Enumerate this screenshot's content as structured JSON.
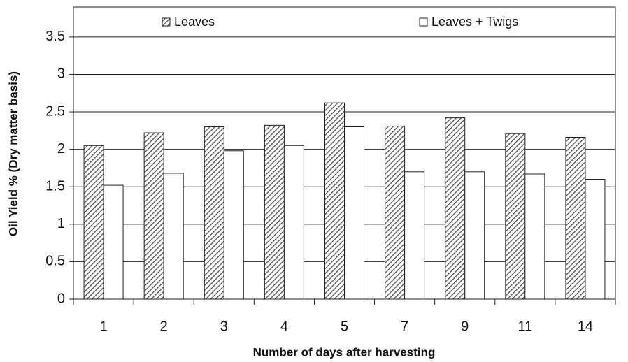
{
  "chart_data": {
    "type": "bar",
    "x_label": "Number of days after harvesting",
    "y_label": "Oil Yield % (Dry matter basis)",
    "categories": [
      "1",
      "2",
      "3",
      "4",
      "5",
      "7",
      "9",
      "11",
      "14"
    ],
    "series": [
      {
        "name": "Leaves",
        "color": "#444444",
        "fill": "hatch",
        "values": [
          2.05,
          2.22,
          2.3,
          2.32,
          2.62,
          2.31,
          2.42,
          2.21,
          2.16
        ]
      },
      {
        "name": "Leaves + Twigs",
        "color": "#ffffff",
        "fill": "solid",
        "values": [
          1.52,
          1.68,
          1.98,
          2.05,
          2.3,
          1.7,
          1.7,
          1.67,
          1.6
        ]
      }
    ],
    "ylim": [
      0,
      3.9
    ],
    "yticks": [
      0,
      0.5,
      1,
      1.5,
      2,
      2.5,
      3,
      3.5
    ],
    "grid": true,
    "legend": "top"
  }
}
